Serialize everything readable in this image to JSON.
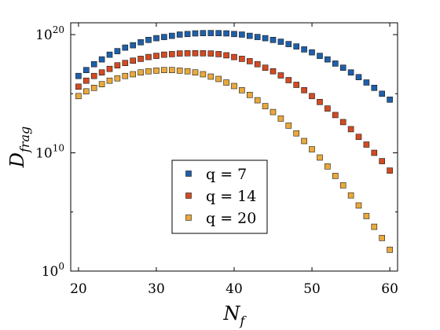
{
  "chart_data": {
    "type": "scatter",
    "xlabel": {
      "base": "N",
      "sub": "f"
    },
    "ylabel": {
      "base": "D",
      "sub": "frag"
    },
    "xlim": [
      19,
      61
    ],
    "ylim_log10": [
      0,
      21
    ],
    "yscale": "log",
    "grid": false,
    "legend_position": "center",
    "x_ticks": [
      {
        "value": 20,
        "label": "20"
      },
      {
        "value": 30,
        "label": "30"
      },
      {
        "value": 40,
        "label": "40"
      },
      {
        "value": 50,
        "label": "50"
      },
      {
        "value": 60,
        "label": "60"
      }
    ],
    "y_ticks": [
      {
        "exp": 0,
        "base": "10",
        "sup": "0"
      },
      {
        "exp": 10,
        "base": "10",
        "sup": "10"
      },
      {
        "exp": 20,
        "base": "10",
        "sup": "20"
      }
    ],
    "series": [
      {
        "name": "q = 7",
        "legend_label": "q = 7",
        "color": "#1F5FA8",
        "x": [
          20,
          21,
          22,
          23,
          24,
          25,
          26,
          27,
          28,
          29,
          30,
          31,
          32,
          33,
          34,
          35,
          36,
          37,
          38,
          39,
          40,
          41,
          42,
          43,
          44,
          45,
          46,
          47,
          48,
          49,
          50,
          51,
          52,
          53,
          54,
          55,
          56,
          57,
          58,
          59,
          60
        ],
        "log10_y": [
          16.5,
          17.0,
          17.5,
          17.9,
          18.3,
          18.6,
          18.9,
          19.1,
          19.35,
          19.55,
          19.7,
          19.8,
          19.9,
          20.0,
          20.05,
          20.1,
          20.12,
          20.13,
          20.12,
          20.1,
          20.05,
          20.0,
          19.9,
          19.8,
          19.7,
          19.55,
          19.4,
          19.2,
          19.0,
          18.75,
          18.5,
          18.2,
          17.9,
          17.55,
          17.2,
          16.8,
          16.4,
          15.95,
          15.5,
          15.0,
          14.5
        ]
      },
      {
        "name": "q = 14",
        "legend_label": "q = 14",
        "color": "#D24B22",
        "x": [
          20,
          21,
          22,
          23,
          24,
          25,
          26,
          27,
          28,
          29,
          30,
          31,
          32,
          33,
          34,
          35,
          36,
          37,
          38,
          39,
          40,
          41,
          42,
          43,
          44,
          45,
          46,
          47,
          48,
          49,
          50,
          51,
          52,
          53,
          54,
          55,
          56,
          57,
          58,
          59,
          60
        ],
        "log10_y": [
          15.6,
          16.1,
          16.5,
          16.8,
          17.1,
          17.4,
          17.6,
          17.8,
          17.95,
          18.1,
          18.2,
          18.3,
          18.35,
          18.4,
          18.42,
          18.43,
          18.42,
          18.4,
          18.35,
          18.25,
          18.1,
          17.95,
          17.75,
          17.5,
          17.2,
          16.9,
          16.55,
          16.15,
          15.75,
          15.3,
          14.8,
          14.3,
          13.75,
          13.2,
          12.6,
          12.0,
          11.35,
          10.7,
          10.0,
          9.3,
          8.5
        ]
      },
      {
        "name": "q = 20",
        "legend_label": "q = 20",
        "color": "#E9A93C",
        "x": [
          20,
          21,
          22,
          23,
          24,
          25,
          26,
          27,
          28,
          29,
          30,
          31,
          32,
          33,
          34,
          35,
          36,
          37,
          38,
          39,
          40,
          41,
          42,
          43,
          44,
          45,
          46,
          47,
          48,
          49,
          50,
          51,
          52,
          53,
          54,
          55,
          56,
          57,
          58,
          59,
          60
        ],
        "log10_y": [
          14.8,
          15.2,
          15.5,
          15.8,
          16.1,
          16.3,
          16.5,
          16.65,
          16.8,
          16.9,
          16.95,
          17.0,
          17.0,
          16.95,
          16.9,
          16.8,
          16.65,
          16.45,
          16.25,
          15.95,
          15.65,
          15.3,
          14.9,
          14.45,
          13.95,
          13.45,
          12.9,
          12.3,
          11.65,
          11.0,
          10.3,
          9.6,
          8.85,
          8.05,
          7.25,
          6.4,
          5.55,
          4.65,
          3.75,
          2.8,
          1.8
        ]
      }
    ]
  }
}
